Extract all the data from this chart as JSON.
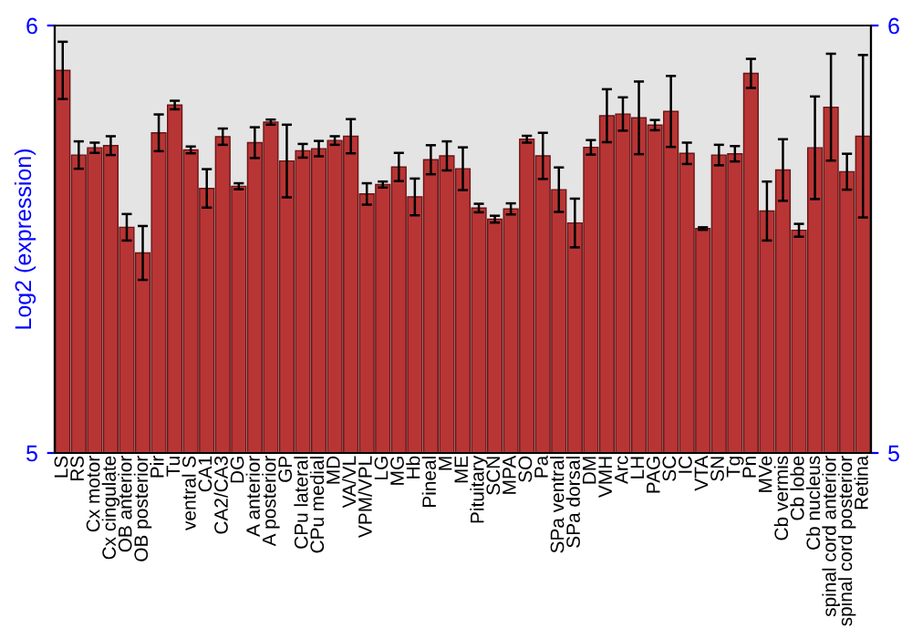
{
  "chart_data": {
    "type": "bar",
    "ylabel": "Log2 (expression)",
    "categories": [
      "LS",
      "RS",
      "Cx motor",
      "Cx cingulate",
      "OB anterior",
      "OB posterior",
      "Pir",
      "Tu",
      "ventral S",
      "CA1",
      "CA2/CA3",
      "DG",
      "A anterior",
      "A posterior",
      "GP",
      "CPu lateral",
      "CPu medial",
      "MD",
      "VA/VL",
      "VPM/VPL",
      "LG",
      "MG",
      "Hb",
      "Pineal",
      "M",
      "ME",
      "Pituitary",
      "SCN",
      "MPA",
      "SO",
      "Pa",
      "SPa ventral",
      "SPa dorsal",
      "DM",
      "VMH",
      "Arc",
      "LH",
      "PAG",
      "SC",
      "IC",
      "VTA",
      "SN",
      "Tg",
      "Pn",
      "MVe",
      "Cb vermis",
      "Cb lobe",
      "Cb nucleus",
      "spinal cord anterior",
      "spinal cord posterior",
      "Retina"
    ],
    "values": [
      5.895,
      5.697,
      5.714,
      5.719,
      5.528,
      5.468,
      5.749,
      5.814,
      5.709,
      5.619,
      5.74,
      5.624,
      5.726,
      5.774,
      5.683,
      5.707,
      5.712,
      5.731,
      5.741,
      5.606,
      5.628,
      5.669,
      5.599,
      5.686,
      5.695,
      5.665,
      5.573,
      5.547,
      5.571,
      5.734,
      5.695,
      5.616,
      5.538,
      5.715,
      5.789,
      5.793,
      5.784,
      5.767,
      5.799,
      5.701,
      5.525,
      5.697,
      5.7,
      5.888,
      5.566,
      5.662,
      5.521,
      5.714,
      5.809,
      5.658,
      5.741
    ],
    "errors": [
      0.067,
      0.032,
      0.012,
      0.022,
      0.031,
      0.063,
      0.043,
      0.01,
      0.008,
      0.045,
      0.019,
      0.007,
      0.036,
      0.006,
      0.085,
      0.016,
      0.018,
      0.01,
      0.04,
      0.025,
      0.007,
      0.033,
      0.043,
      0.034,
      0.034,
      0.05,
      0.01,
      0.008,
      0.013,
      0.008,
      0.054,
      0.052,
      0.057,
      0.017,
      0.062,
      0.039,
      0.085,
      0.012,
      0.083,
      0.025,
      0.003,
      0.024,
      0.018,
      0.034,
      0.069,
      0.072,
      0.015,
      0.12,
      0.125,
      0.042,
      0.19
    ],
    "color": "#b83535",
    "ylim": [
      5,
      6
    ],
    "yticks": [
      5,
      6
    ],
    "y2lim": [
      5,
      6
    ],
    "y2ticks": [
      5,
      6
    ],
    "grid": false,
    "legend": false
  }
}
